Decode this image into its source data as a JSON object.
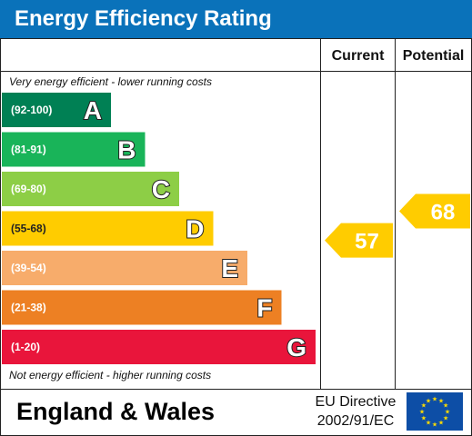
{
  "title": "Energy Efficiency Rating",
  "columns": {
    "current": "Current",
    "potential": "Potential"
  },
  "notes": {
    "top": "Very energy efficient - lower running costs",
    "bottom": "Not energy efficient - higher running costs"
  },
  "footer": {
    "region": "England & Wales",
    "directive_line1": "EU Directive",
    "directive_line2": "2002/91/EC"
  },
  "chart_data": {
    "type": "bar",
    "categories": [
      "A",
      "B",
      "C",
      "D",
      "E",
      "F",
      "G"
    ],
    "ranges": [
      "(92-100)",
      "(81-91)",
      "(69-80)",
      "(55-68)",
      "(39-54)",
      "(21-38)",
      "(1-20)"
    ],
    "colors": [
      "#008054",
      "#19b459",
      "#8dce46",
      "#ffcc00",
      "#f7ac6b",
      "#ed8023",
      "#e9153b"
    ],
    "ratings": [
      {
        "column": "Current",
        "value": 57,
        "band": "D",
        "color": "#ffcc00"
      },
      {
        "column": "Potential",
        "value": 68,
        "band": "D",
        "color": "#ffcc00"
      }
    ]
  }
}
